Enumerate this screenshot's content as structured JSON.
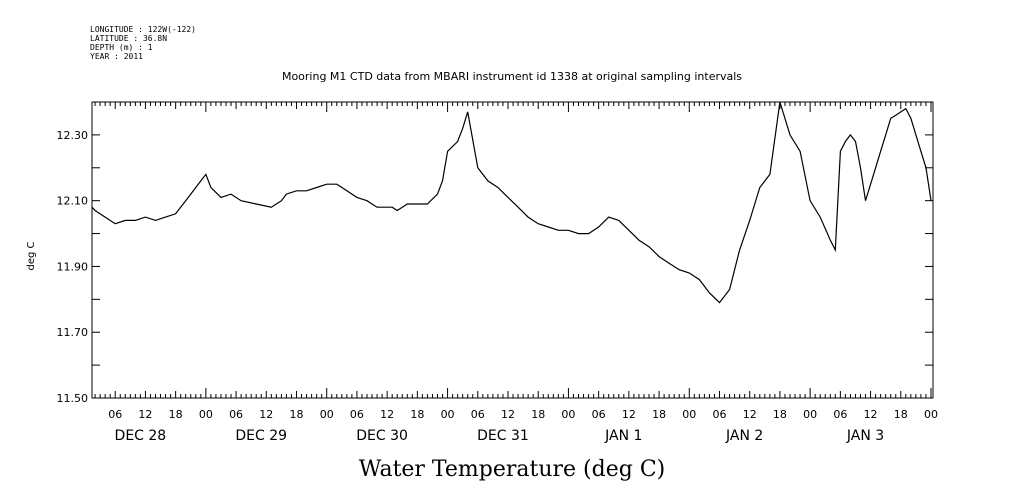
{
  "header": {
    "longitude": "LONGITUDE : 122W(-122)",
    "latitude": "LATITUDE : 36.8N",
    "depth": "DEPTH (m) : 1",
    "year": "YEAR : 2011"
  },
  "chart_data": {
    "type": "line",
    "title": "Mooring M1 CTD data from MBARI instrument id 1338 at original sampling intervals",
    "xlabel": "Water Temperature (deg C)",
    "ylabel": "deg C",
    "ylim": [
      11.5,
      12.4
    ],
    "yticks": [
      11.5,
      11.7,
      11.9,
      12.1,
      12.3
    ],
    "ytick_labels": [
      "11.50",
      "11.70",
      "11.90",
      "12.10",
      "12.30"
    ],
    "xlim_hours": [
      0,
      168
    ],
    "x_units": "hours from 2011-12-28 00:00",
    "hour_labels": [
      "06",
      "12",
      "18",
      "00"
    ],
    "day_labels": [
      "DEC 28",
      "DEC 29",
      "DEC 30",
      "DEC 31",
      "JAN  1",
      "JAN  2",
      "JAN  3"
    ],
    "grid": false,
    "line_color": "#000000",
    "series": [
      {
        "name": "",
        "x": [
          0,
          2,
          4,
          6,
          8,
          10,
          12,
          14,
          16,
          18,
          20,
          22,
          23.5,
          24,
          25,
          27,
          29,
          31,
          34,
          37,
          39,
          40,
          42,
          44,
          46,
          48,
          50,
          52,
          54,
          56,
          57,
          58,
          59,
          60,
          61,
          62,
          63,
          64,
          66,
          68,
          70,
          71,
          72,
          74,
          75,
          76,
          78,
          80,
          82,
          84,
          86,
          88,
          90,
          92,
          94,
          96,
          98,
          100,
          102,
          104,
          106,
          108,
          110,
          112,
          114,
          116,
          118,
          120,
          122,
          124,
          126,
          128,
          130,
          132,
          134,
          136,
          138,
          140,
          142,
          144,
          146,
          148,
          149,
          150,
          151,
          152,
          153,
          154,
          155,
          156,
          157,
          158,
          159,
          160,
          161,
          162,
          163,
          164,
          165,
          166,
          167,
          168
        ],
        "y": [
          12.08,
          12.07,
          12.05,
          12.03,
          12.04,
          12.04,
          12.05,
          12.04,
          12.05,
          12.06,
          12.1,
          12.14,
          12.17,
          12.18,
          12.14,
          12.11,
          12.12,
          12.1,
          12.09,
          12.08,
          12.1,
          12.12,
          12.13,
          12.13,
          12.14,
          12.15,
          12.15,
          12.13,
          12.11,
          12.1,
          12.09,
          12.08,
          12.08,
          12.08,
          12.08,
          12.07,
          12.08,
          12.09,
          12.09,
          12.09,
          12.12,
          12.16,
          12.25,
          12.28,
          12.32,
          12.37,
          12.2,
          12.16,
          12.14,
          12.11,
          12.08,
          12.05,
          12.03,
          12.02,
          12.01,
          12.01,
          12.0,
          12.0,
          12.02,
          12.05,
          12.04,
          12.01,
          11.98,
          11.96,
          11.93,
          11.91,
          11.89,
          11.88,
          11.86,
          11.82,
          11.79,
          11.83,
          11.95,
          12.04,
          12.14,
          12.18,
          12.4,
          12.3,
          12.25,
          12.1,
          12.05,
          11.98,
          11.95,
          12.25,
          12.28,
          12.3,
          12.28,
          12.2,
          12.1,
          12.15,
          12.2,
          12.25,
          12.3,
          12.35,
          12.36,
          12.37,
          12.38,
          12.35,
          12.3,
          12.25,
          12.2,
          12.1
        ]
      }
    ]
  }
}
